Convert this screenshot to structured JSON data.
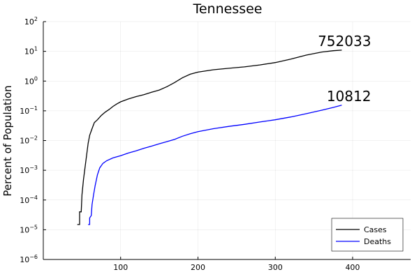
{
  "chart_data": {
    "type": "line",
    "title": "Tennessee",
    "xlabel": "",
    "ylabel": "Percent of Population",
    "xlim": [
      0,
      475
    ],
    "ylim_log10": [
      -6,
      2
    ],
    "y_scale": "log10",
    "grid": true,
    "legend_position": "bottom-right",
    "x_ticks": [
      {
        "value": 100,
        "label": "100"
      },
      {
        "value": 200,
        "label": "200"
      },
      {
        "value": 300,
        "label": "300"
      },
      {
        "value": 400,
        "label": "400"
      }
    ],
    "y_ticks": [
      {
        "exp": -6,
        "base": "10",
        "sup": "−6"
      },
      {
        "exp": -5,
        "base": "10",
        "sup": "−5"
      },
      {
        "exp": -4,
        "base": "10",
        "sup": "−4"
      },
      {
        "exp": -3,
        "base": "10",
        "sup": "−3"
      },
      {
        "exp": -2,
        "base": "10",
        "sup": "−2"
      },
      {
        "exp": -1,
        "base": "10",
        "sup": "−1"
      },
      {
        "exp": 0,
        "base": "10",
        "sup": "0"
      },
      {
        "exp": 1,
        "base": "10",
        "sup": "1"
      },
      {
        "exp": 2,
        "base": "10",
        "sup": "2"
      }
    ],
    "series": [
      {
        "name": "Cases",
        "color": "#000000",
        "end_label": "752033",
        "points": [
          [
            44,
            1.5e-05
          ],
          [
            47,
            1.5e-05
          ],
          [
            47,
            4e-05
          ],
          [
            49,
            4e-05
          ],
          [
            50,
            0.00015
          ],
          [
            52,
            0.0005
          ],
          [
            55,
            0.002
          ],
          [
            58,
            0.008
          ],
          [
            60,
            0.015
          ],
          [
            63,
            0.025
          ],
          [
            66,
            0.04
          ],
          [
            70,
            0.05
          ],
          [
            75,
            0.07
          ],
          [
            80,
            0.09
          ],
          [
            85,
            0.11
          ],
          [
            90,
            0.14
          ],
          [
            95,
            0.17
          ],
          [
            100,
            0.2
          ],
          [
            110,
            0.25
          ],
          [
            120,
            0.3
          ],
          [
            130,
            0.35
          ],
          [
            140,
            0.42
          ],
          [
            150,
            0.5
          ],
          [
            160,
            0.65
          ],
          [
            170,
            0.9
          ],
          [
            180,
            1.3
          ],
          [
            190,
            1.7
          ],
          [
            200,
            2.0
          ],
          [
            220,
            2.4
          ],
          [
            240,
            2.7
          ],
          [
            260,
            3.0
          ],
          [
            280,
            3.5
          ],
          [
            300,
            4.2
          ],
          [
            320,
            5.5
          ],
          [
            340,
            7.5
          ],
          [
            360,
            9.5
          ],
          [
            375,
            10.5
          ],
          [
            386,
            11.0
          ]
        ]
      },
      {
        "name": "Deaths",
        "color": "#0000ff",
        "end_label": "10812",
        "points": [
          [
            58,
            1.5e-05
          ],
          [
            60,
            1.5e-05
          ],
          [
            60,
            2.5e-05
          ],
          [
            62,
            3e-05
          ],
          [
            63,
            7e-05
          ],
          [
            65,
            0.00015
          ],
          [
            67,
            0.0003
          ],
          [
            70,
            0.0007
          ],
          [
            73,
            0.0012
          ],
          [
            77,
            0.0017
          ],
          [
            82,
            0.0021
          ],
          [
            90,
            0.0026
          ],
          [
            100,
            0.0031
          ],
          [
            110,
            0.0038
          ],
          [
            120,
            0.0045
          ],
          [
            130,
            0.0055
          ],
          [
            140,
            0.0065
          ],
          [
            150,
            0.0078
          ],
          [
            160,
            0.0092
          ],
          [
            170,
            0.011
          ],
          [
            180,
            0.014
          ],
          [
            190,
            0.017
          ],
          [
            200,
            0.02
          ],
          [
            220,
            0.025
          ],
          [
            240,
            0.03
          ],
          [
            260,
            0.035
          ],
          [
            280,
            0.042
          ],
          [
            300,
            0.05
          ],
          [
            320,
            0.062
          ],
          [
            340,
            0.08
          ],
          [
            360,
            0.105
          ],
          [
            375,
            0.13
          ],
          [
            386,
            0.155
          ]
        ]
      }
    ]
  }
}
